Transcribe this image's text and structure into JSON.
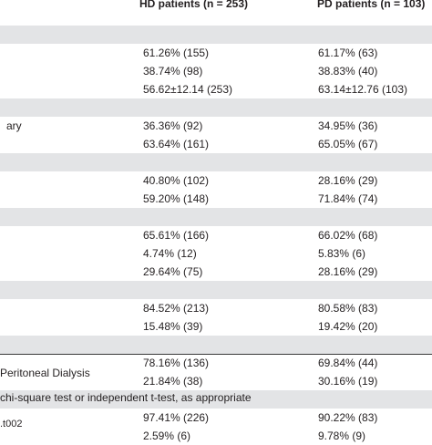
{
  "header": {
    "hd": "HD patients (n = 253)",
    "pd": "PD patients (n = 103)"
  },
  "rows": [
    {
      "label": "",
      "hd": "",
      "pd": "",
      "shaded": true
    },
    {
      "label": "",
      "hd": "61.26% (155)",
      "pd": "61.17% (63)",
      "shaded": false
    },
    {
      "label": "",
      "hd": "38.74% (98)",
      "pd": "38.83% (40)",
      "shaded": false
    },
    {
      "label": "",
      "hd": "56.62±12.14 (253)",
      "pd": "63.14±12.76 (103)",
      "shaded": false
    },
    {
      "label": "",
      "hd": "",
      "pd": "",
      "shaded": true
    },
    {
      "label": "ary",
      "hd": "36.36% (92)",
      "pd": "34.95% (36)",
      "shaded": false
    },
    {
      "label": "",
      "hd": "63.64% (161)",
      "pd": "65.05% (67)",
      "shaded": false
    },
    {
      "label": "",
      "hd": "",
      "pd": "",
      "shaded": true
    },
    {
      "label": "",
      "hd": "40.80% (102)",
      "pd": "28.16% (29)",
      "shaded": false
    },
    {
      "label": "",
      "hd": "59.20% (148)",
      "pd": "71.84% (74)",
      "shaded": false
    },
    {
      "label": "",
      "hd": "",
      "pd": "",
      "shaded": true
    },
    {
      "label": "",
      "hd": "65.61% (166)",
      "pd": "66.02% (68)",
      "shaded": false
    },
    {
      "label": "",
      "hd": "4.74% (12)",
      "pd": "5.83% (6)",
      "shaded": false
    },
    {
      "label": "",
      "hd": "29.64% (75)",
      "pd": "28.16% (29)",
      "shaded": false
    },
    {
      "label": "",
      "hd": "",
      "pd": "",
      "shaded": true
    },
    {
      "label": "",
      "hd": "84.52% (213)",
      "pd": "80.58% (83)",
      "shaded": false
    },
    {
      "label": "",
      "hd": "15.48% (39)",
      "pd": "19.42% (20)",
      "shaded": false
    },
    {
      "label": "",
      "hd": "",
      "pd": "",
      "shaded": true
    },
    {
      "label": "",
      "hd": "78.16% (136)",
      "pd": "69.84% (44)",
      "shaded": false
    },
    {
      "label": "",
      "hd": "21.84% (38)",
      "pd": "30.16% (19)",
      "shaded": false
    },
    {
      "label": "",
      "hd": "",
      "pd": "",
      "shaded": true
    },
    {
      "label": "",
      "hd": "97.41% (226)",
      "pd": "90.22% (83)",
      "shaded": false
    },
    {
      "label": "",
      "hd": "2.59% (6)",
      "pd": "9.78% (9)",
      "shaded": false
    }
  ],
  "footnotes": {
    "line1": "Peritoneal Dialysis",
    "line2": "chi-square test or independent t-test, as appropriate",
    "line3": ".t002"
  }
}
